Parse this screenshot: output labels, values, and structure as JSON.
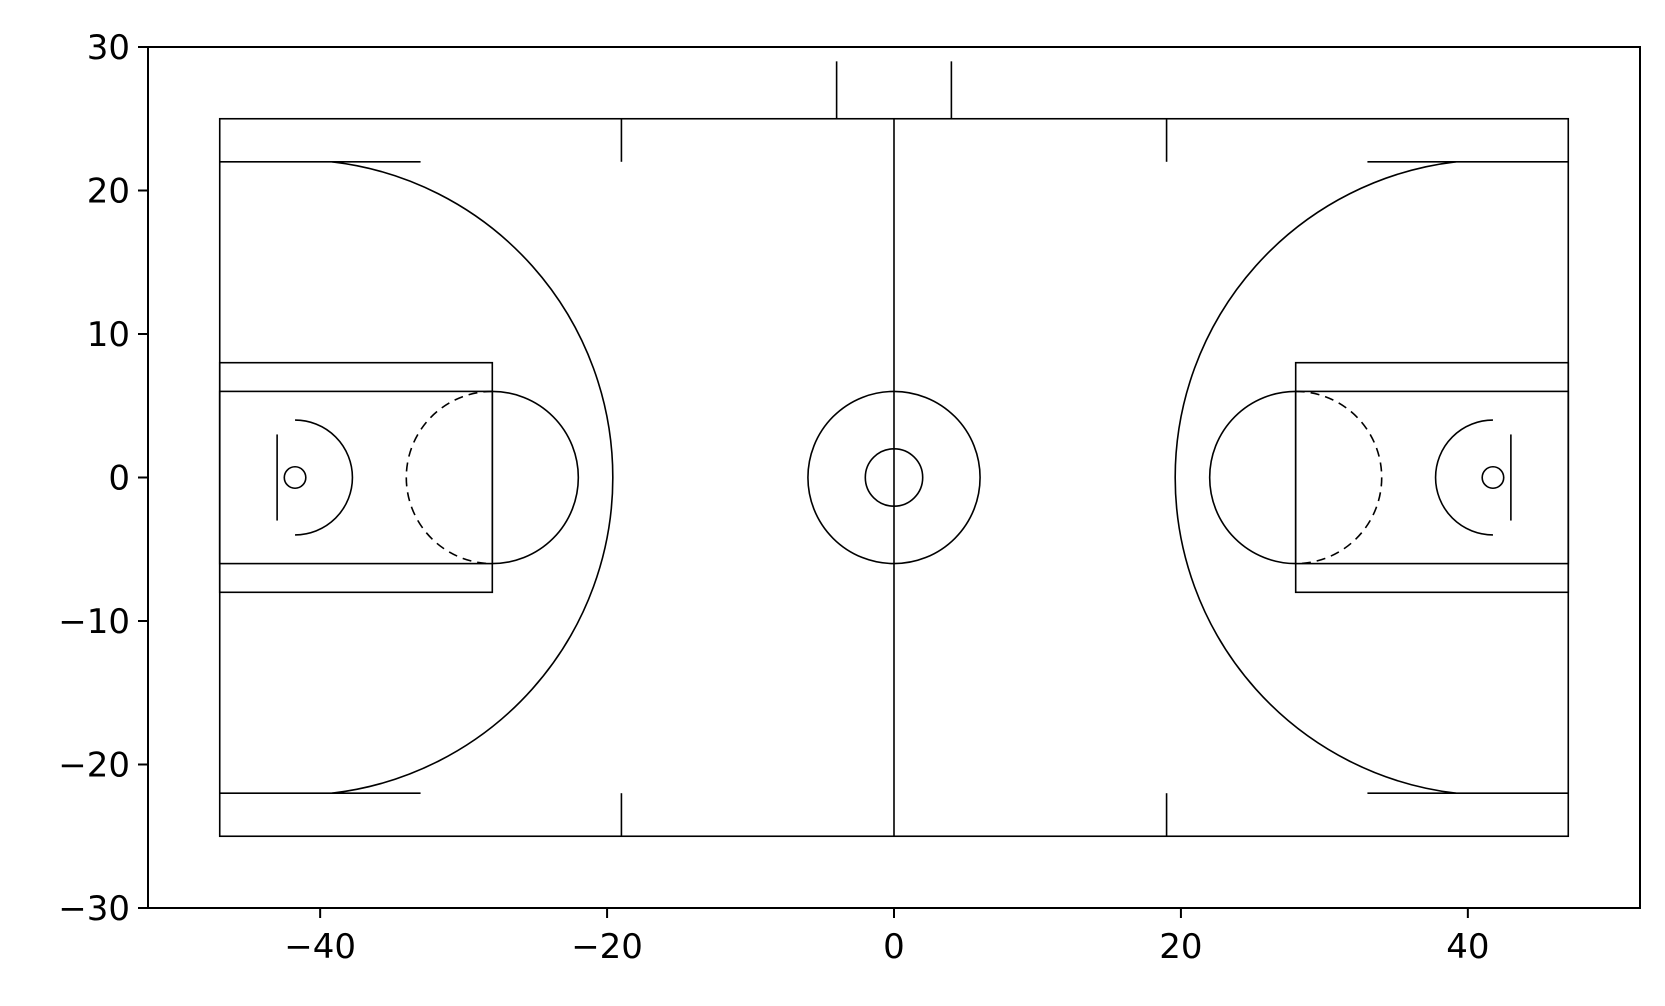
{
  "chart_data": {
    "type": "diagram",
    "xlim": [
      -52,
      52
    ],
    "ylim": [
      -30,
      30
    ],
    "grid": false,
    "legend": "none",
    "line_color": "#000000",
    "background": "#ffffff",
    "x_ticks": [
      {
        "value": -40,
        "label": "−40"
      },
      {
        "value": -20,
        "label": "−20"
      },
      {
        "value": 0,
        "label": "0"
      },
      {
        "value": 20,
        "label": "20"
      },
      {
        "value": 40,
        "label": "40"
      }
    ],
    "y_ticks": [
      {
        "value": 30,
        "label": "30"
      },
      {
        "value": 20,
        "label": "20"
      },
      {
        "value": 10,
        "label": "10"
      },
      {
        "value": 0,
        "label": "0"
      },
      {
        "value": -10,
        "label": "−10"
      },
      {
        "value": -20,
        "label": "−20"
      },
      {
        "value": -30,
        "label": "−30"
      }
    ],
    "court": {
      "boundary": {
        "x0": -47,
        "x1": 47,
        "y0": -25,
        "y1": 25
      },
      "midcourt_line_x": 0,
      "center_outer_circle_radius": 6,
      "center_inner_circle_radius": 2,
      "hoops": [
        {
          "side": "left",
          "hoop_x": -41.75,
          "hoop_radius": 0.75,
          "backboard_x": -43,
          "backboard_half_width": 3,
          "restricted_radius": 4,
          "paint_outer": {
            "x0": -47,
            "x1": -28,
            "half_width": 8
          },
          "paint_inner": {
            "x0": -47,
            "x1": -28,
            "half_width": 6
          },
          "ft_center_x": -28,
          "ft_circle_radius": 6,
          "three_pt_corner_x": -33,
          "three_pt_corner_y": 22,
          "three_pt_radius": 22.15
        },
        {
          "side": "right",
          "hoop_x": 41.75,
          "hoop_radius": 0.75,
          "backboard_x": 43,
          "backboard_half_width": 3,
          "restricted_radius": 4,
          "paint_outer": {
            "x0": 28,
            "x1": 47,
            "half_width": 8
          },
          "paint_inner": {
            "x0": 28,
            "x1": 47,
            "half_width": 6
          },
          "ft_center_x": 28,
          "ft_circle_radius": 6,
          "three_pt_corner_x": 33,
          "three_pt_corner_y": 22,
          "three_pt_radius": 22.15
        }
      ],
      "hash_marks": [
        {
          "x": -19,
          "y0": 22,
          "y1": 25
        },
        {
          "x": 19,
          "y0": 22,
          "y1": 25
        },
        {
          "x": -19,
          "y0": -25,
          "y1": -22
        },
        {
          "x": 19,
          "y0": -25,
          "y1": -22
        }
      ],
      "bench_marks": [
        {
          "x": -4,
          "y0": 25,
          "y1": 29
        },
        {
          "x": 4,
          "y0": 25,
          "y1": 29
        }
      ]
    }
  }
}
